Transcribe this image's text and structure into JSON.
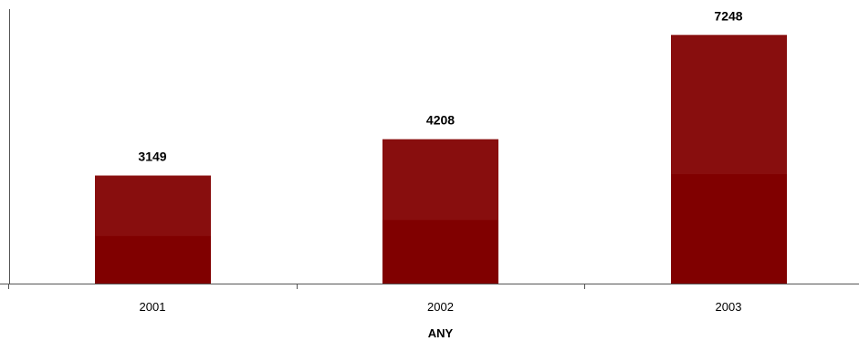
{
  "chart_data": {
    "type": "bar",
    "title": "",
    "xlabel": "ANY",
    "ylabel": "",
    "categories": [
      "2001",
      "2002",
      "2003"
    ],
    "values": [
      3149,
      4208,
      7248
    ],
    "data_labels": [
      "3149",
      "4208",
      "7248"
    ],
    "ylim": [
      0,
      8000
    ],
    "grid": false,
    "legend": "none",
    "colors": {
      "bar_top": "#880E0E",
      "bar_bottom": "#800000",
      "axis": "#555555"
    }
  }
}
